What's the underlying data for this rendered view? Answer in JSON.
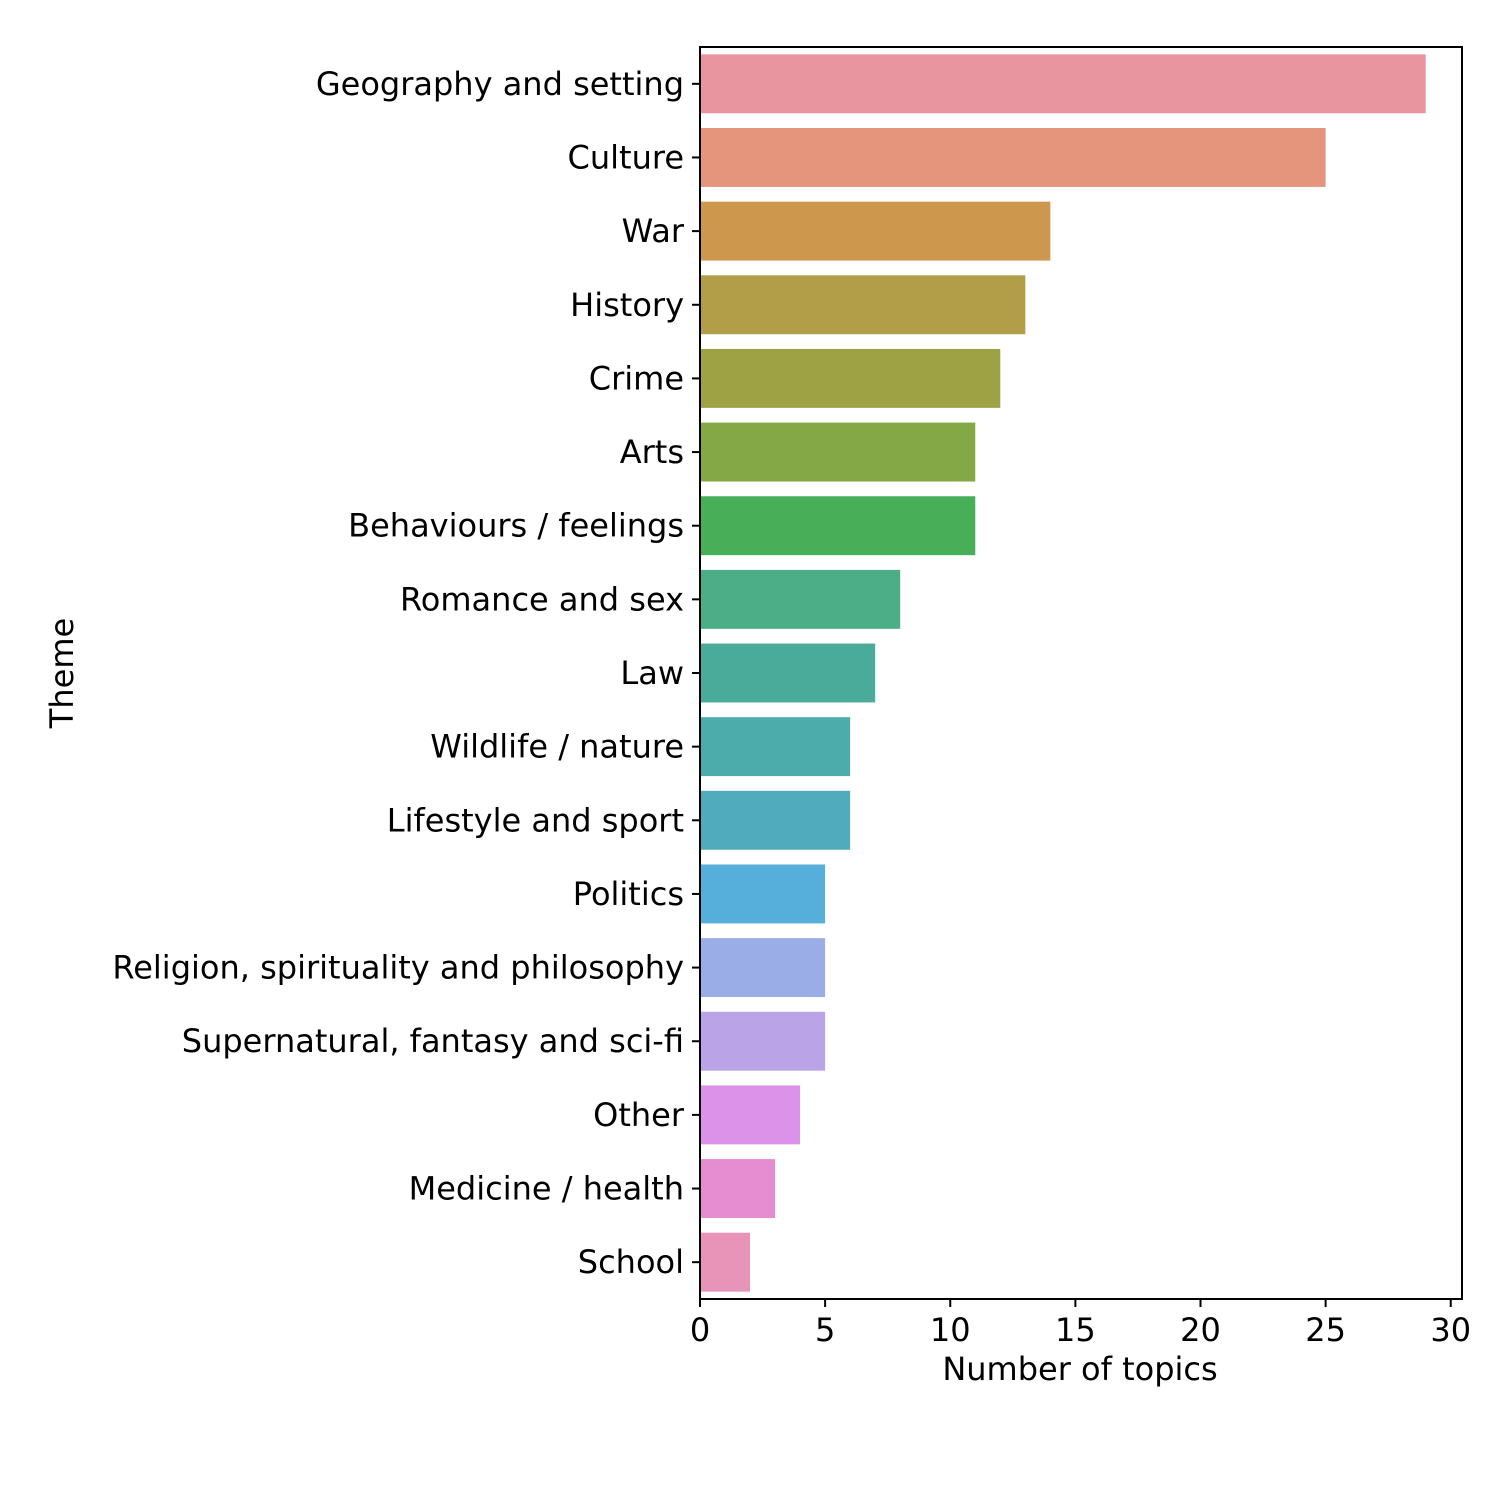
{
  "chart_data": {
    "type": "bar",
    "orientation": "horizontal",
    "title": "",
    "xlabel": "Number of topics",
    "ylabel": "Theme",
    "xlim": [
      0,
      30.45
    ],
    "xticks": [
      0,
      5,
      10,
      15,
      20,
      25,
      30
    ],
    "grid": false,
    "categories": [
      "Geography and setting",
      "Culture",
      "War",
      "History",
      "Crime",
      "Arts",
      "Behaviours / feelings",
      "Romance and sex",
      "Law",
      "Wildlife / nature",
      "Lifestyle and sport",
      "Politics",
      "Religion, spirituality and philosophy",
      "Supernatural, fantasy and sci-fi",
      "Other",
      "Medicine / health",
      "School"
    ],
    "values": [
      29,
      25,
      14,
      13,
      12,
      11,
      11,
      8,
      7,
      6,
      6,
      5,
      5,
      5,
      4,
      3,
      2
    ],
    "colors": [
      "#e8959f",
      "#e5957b",
      "#cd974d",
      "#b29e48",
      "#9ea144",
      "#84a846",
      "#48ae57",
      "#4bae87",
      "#4bab9b",
      "#4cabab",
      "#50acbc",
      "#56aedb",
      "#9aade7",
      "#bba3e8",
      "#db92e8",
      "#e68cd0",
      "#e894b8"
    ]
  }
}
